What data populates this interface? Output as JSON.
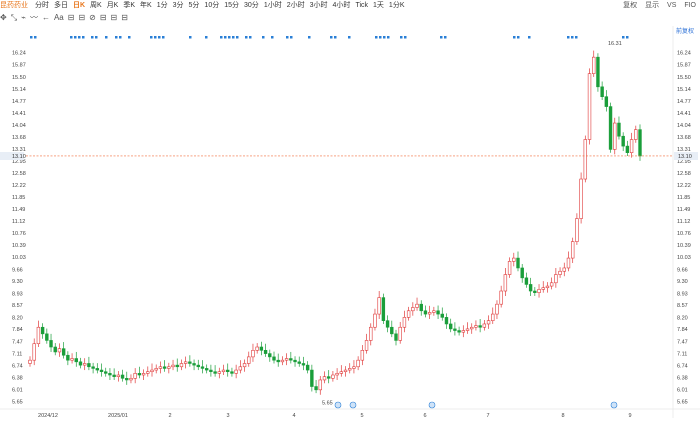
{
  "toolbar": {
    "stock_name": "昆药药业",
    "periods": [
      "分时",
      "多日",
      "日K",
      "周K",
      "月K",
      "季K",
      "年K",
      "1分",
      "3分",
      "5分",
      "10分",
      "15分",
      "30分",
      "1小时",
      "2小时",
      "3小时",
      "4小时",
      "Tick",
      "1天",
      "1分K"
    ],
    "active_period": "日K",
    "right": [
      "复权",
      "显示",
      "VS",
      "FIO"
    ]
  },
  "toolbar2": {
    "items": [
      "✥",
      "⤡",
      "⌁",
      "〰",
      "←",
      "Aa",
      "⊟",
      "⊟",
      "⊘",
      "⊟",
      "⊟",
      "⊟"
    ]
  },
  "fuquan_label": "前复权",
  "colors": {
    "up": "#e03a3a",
    "down": "#1a9e3a",
    "price_line": "#f26b3a",
    "marker": "#2a7fd6"
  },
  "chart_data": {
    "type": "candlestick",
    "yticks": [
      16.24,
      15.87,
      15.5,
      15.14,
      14.77,
      14.41,
      14.04,
      13.68,
      13.31,
      12.95,
      12.58,
      12.22,
      11.85,
      11.49,
      11.12,
      10.76,
      10.39,
      10.03,
      9.66,
      9.3,
      8.93,
      8.57,
      8.2,
      7.84,
      7.47,
      7.11,
      6.74,
      6.38,
      6.01,
      5.65
    ],
    "ylim": [
      5.6,
      16.5
    ],
    "xticks": [
      "2024/12",
      "2025/01",
      "2",
      "3",
      "4",
      "5",
      "6",
      "7",
      "8",
      "9"
    ],
    "current_price": "13.10",
    "annotations": {
      "high": "16.31",
      "low": "5.65"
    },
    "close": [
      6.9,
      7.4,
      7.9,
      7.7,
      7.5,
      7.3,
      7.15,
      7.25,
      7.05,
      6.9,
      6.95,
      6.85,
      6.75,
      6.8,
      6.7,
      6.65,
      6.6,
      6.55,
      6.5,
      6.45,
      6.4,
      6.45,
      6.35,
      6.3,
      6.35,
      6.5,
      6.45,
      6.5,
      6.55,
      6.6,
      6.65,
      6.7,
      6.65,
      6.7,
      6.75,
      6.7,
      6.8,
      6.85,
      6.8,
      6.75,
      6.7,
      6.65,
      6.6,
      6.55,
      6.5,
      6.55,
      6.6,
      6.55,
      6.5,
      6.6,
      6.7,
      6.8,
      7.0,
      7.2,
      7.3,
      7.2,
      7.1,
      7.0,
      6.9,
      6.85,
      6.9,
      6.95,
      6.9,
      6.85,
      6.8,
      6.75,
      6.6,
      6.1,
      6.0,
      6.3,
      6.4,
      6.35,
      6.45,
      6.5,
      6.55,
      6.6,
      6.65,
      6.7,
      6.9,
      7.2,
      7.5,
      7.9,
      8.3,
      8.8,
      8.1,
      7.9,
      7.7,
      7.5,
      7.9,
      8.2,
      8.4,
      8.5,
      8.6,
      8.4,
      8.3,
      8.35,
      8.4,
      8.3,
      8.2,
      8.0,
      7.85,
      7.8,
      7.75,
      7.8,
      7.85,
      7.9,
      7.95,
      7.9,
      8.0,
      8.1,
      8.3,
      8.6,
      9.0,
      9.5,
      9.9,
      10.0,
      9.7,
      9.4,
      9.2,
      9.0,
      8.95,
      9.05,
      9.1,
      9.15,
      9.25,
      9.5,
      9.6,
      9.7,
      10.0,
      10.5,
      11.2,
      12.4,
      13.6,
      15.6,
      16.1,
      15.2,
      14.9,
      14.6,
      13.3,
      14.1,
      13.7,
      13.4,
      13.2,
      13.6,
      13.9,
      13.1
    ]
  }
}
